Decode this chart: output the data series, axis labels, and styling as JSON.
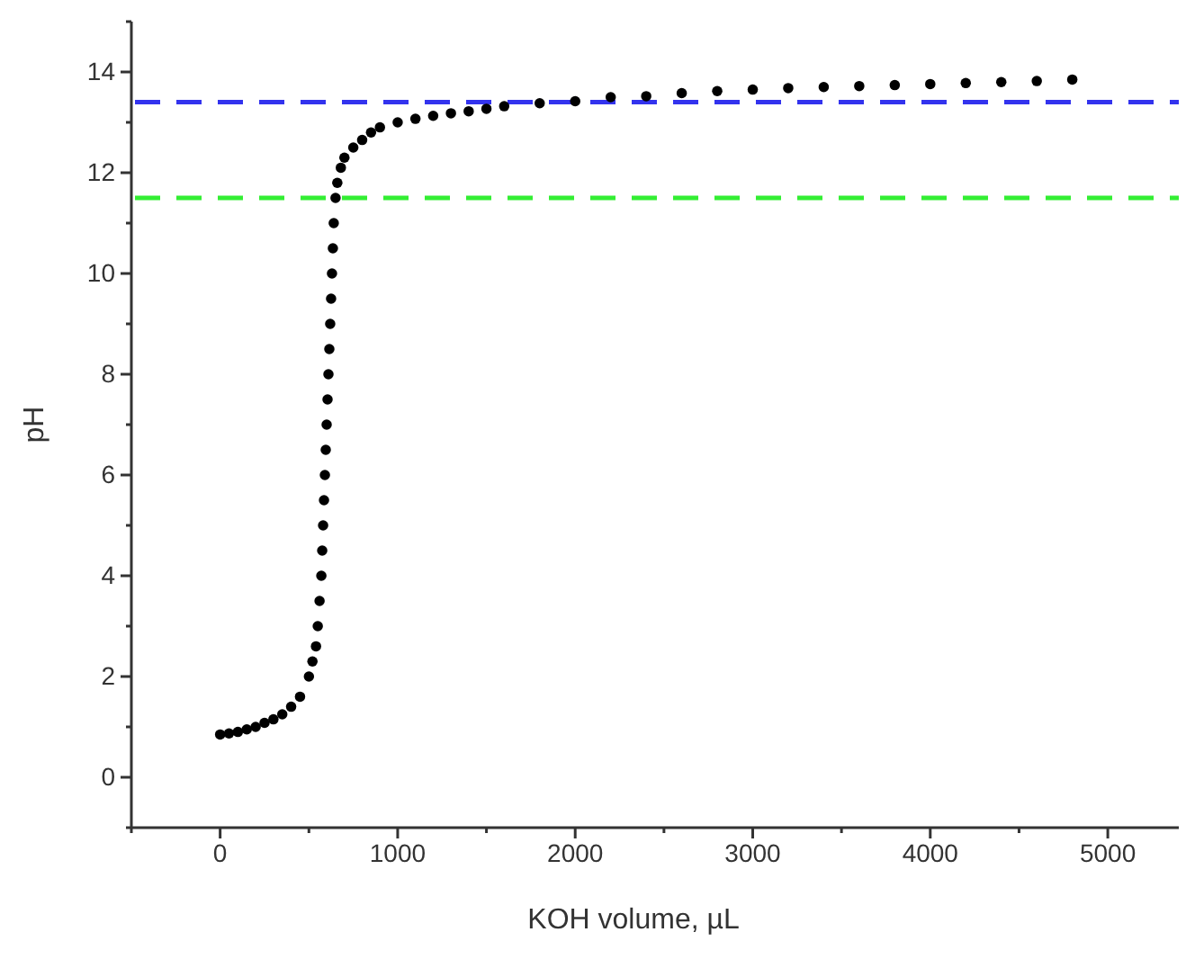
{
  "chart_data": {
    "type": "scatter",
    "xlabel": "KOH volume, µL",
    "ylabel": "pH",
    "marker": "circle",
    "grid": false,
    "xlim": [
      -500,
      5400
    ],
    "ylim": [
      -1,
      15
    ],
    "xticks": [
      {
        "value": -500,
        "label": null
      },
      0,
      {
        "value": 500,
        "label": null
      },
      1000,
      {
        "value": 1500,
        "label": null
      },
      2000,
      {
        "value": 2500,
        "label": null
      },
      3000,
      {
        "value": 3500,
        "label": null
      },
      4000,
      {
        "value": 4500,
        "label": null
      },
      5000
    ],
    "yticks": [
      {
        "value": -1,
        "label": null
      },
      0,
      {
        "value": 1,
        "label": null
      },
      2,
      {
        "value": 3,
        "label": null
      },
      4,
      {
        "value": 5,
        "label": null
      },
      6,
      {
        "value": 7,
        "label": null
      },
      8,
      {
        "value": 9,
        "label": null
      },
      10,
      {
        "value": 11,
        "label": null
      },
      12,
      {
        "value": 13,
        "label": null
      },
      14,
      {
        "value": 15,
        "label": null
      }
    ],
    "ref_lines": [
      {
        "axis": "y",
        "value": 13.4,
        "color": "#3333ee",
        "line_style": "dashed"
      },
      {
        "axis": "y",
        "value": 11.5,
        "color": "#33ee33",
        "line_style": "dashed"
      }
    ],
    "series": [
      {
        "color": "#000000",
        "x": [
          0,
          50,
          100,
          150,
          200,
          250,
          300,
          350,
          400,
          450,
          500,
          520,
          540,
          550,
          560,
          570,
          575,
          580,
          585,
          590,
          595,
          600,
          605,
          610,
          615,
          620,
          625,
          630,
          635,
          640,
          650,
          660,
          680,
          700,
          750,
          800,
          850,
          900,
          1000,
          1100,
          1200,
          1300,
          1400,
          1500,
          1600,
          1800,
          2000,
          2200,
          2400,
          2600,
          2800,
          3000,
          3200,
          3400,
          3600,
          3800,
          4000,
          4200,
          4400,
          4600,
          4800
        ],
        "values": [
          0.85,
          0.87,
          0.9,
          0.95,
          1.0,
          1.08,
          1.15,
          1.25,
          1.4,
          1.6,
          2.0,
          2.3,
          2.6,
          3.0,
          3.5,
          4.0,
          4.5,
          5.0,
          5.5,
          6.0,
          6.5,
          7.0,
          7.5,
          8.0,
          8.5,
          9.0,
          9.5,
          10.0,
          10.5,
          11.0,
          11.5,
          11.8,
          12.1,
          12.3,
          12.5,
          12.65,
          12.8,
          12.9,
          13.0,
          13.07,
          13.13,
          13.18,
          13.22,
          13.27,
          13.32,
          13.38,
          13.42,
          13.5,
          13.52,
          13.58,
          13.62,
          13.65,
          13.68,
          13.7,
          13.72,
          13.74,
          13.76,
          13.78,
          13.8,
          13.82,
          13.85
        ]
      }
    ]
  }
}
